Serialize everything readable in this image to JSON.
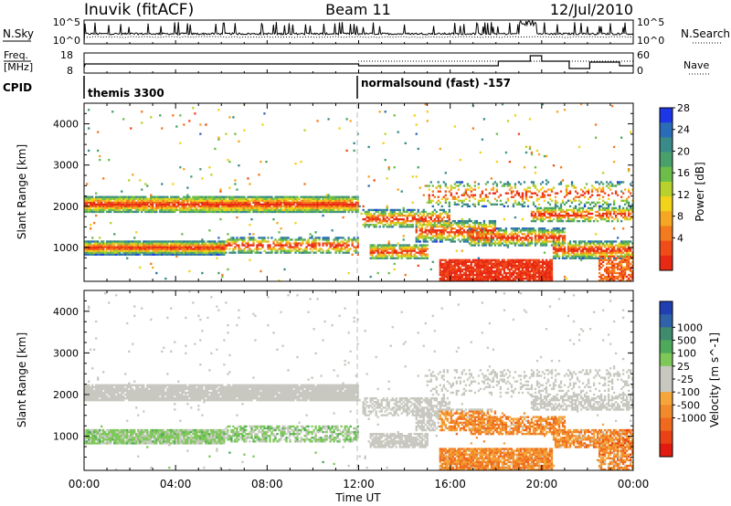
{
  "header": {
    "station": "Inuvik (fitACF)",
    "beam": "Beam 11",
    "date": "12/Jul/2010"
  },
  "noise_panel": {
    "left_label": "N.Sky",
    "right_label": "N.Search",
    "left_ticks": [
      "10^5",
      "10^0"
    ],
    "right_ticks": [
      "10^5",
      "10^0"
    ]
  },
  "freq_panel": {
    "left_label_1": "Freq.",
    "left_label_2": "[MHz]",
    "right_label": "Nave",
    "left_ticks": [
      "18",
      "8"
    ],
    "right_ticks": [
      "60",
      "0"
    ]
  },
  "cpid_panel": {
    "label": "CPID",
    "modes": [
      {
        "name": "themis 3300",
        "start_hour": 0
      },
      {
        "name": "normalsound (fast) -157",
        "start_hour": 12
      }
    ]
  },
  "chart_data": [
    {
      "type": "heatmap",
      "panel": "power",
      "ylabel": "Slant Range [km]",
      "xlabel": "",
      "y_ticks": [
        1000,
        2000,
        3000,
        4000
      ],
      "ylim": [
        180,
        4500
      ],
      "x_ticks": [
        "00:00",
        "04:00",
        "08:00",
        "12:00",
        "16:00",
        "20:00",
        "00:00"
      ],
      "xlim_hours": [
        0,
        24
      ],
      "colorbar": {
        "label": "Power [dB]",
        "ticks": [
          "4",
          "8",
          "12",
          "16",
          "20",
          "24",
          "28"
        ],
        "colors": [
          "#1d36e6",
          "#2b6cb8",
          "#3a8a8a",
          "#4aa06a",
          "#6cbd4a",
          "#b8d12c",
          "#f2d21b",
          "#f5a623",
          "#f47a1e",
          "#ef4c1a",
          "#e82a14"
        ]
      }
    },
    {
      "type": "heatmap",
      "panel": "velocity",
      "ylabel": "Slant Range [km]",
      "xlabel": "Time UT",
      "y_ticks": [
        1000,
        2000,
        3000,
        4000
      ],
      "ylim": [
        180,
        4500
      ],
      "x_ticks": [
        "00:00",
        "04:00",
        "08:00",
        "12:00",
        "16:00",
        "20:00",
        "00:00"
      ],
      "xlim_hours": [
        0,
        24
      ],
      "colorbar": {
        "label": "Velocity [m s^-1]",
        "ticks": [
          "1000",
          "500",
          "100",
          "25",
          "-25",
          "-100",
          "-500",
          "-1000"
        ],
        "colors": [
          "#1f3fb3",
          "#2f62a8",
          "#3f8b6e",
          "#4fa95a",
          "#7ec85a",
          "#c8c8c0",
          "#c8c8c0",
          "#f5a53a",
          "#f08a2a",
          "#ef6a1e",
          "#e84216",
          "#e21b10"
        ]
      }
    }
  ]
}
